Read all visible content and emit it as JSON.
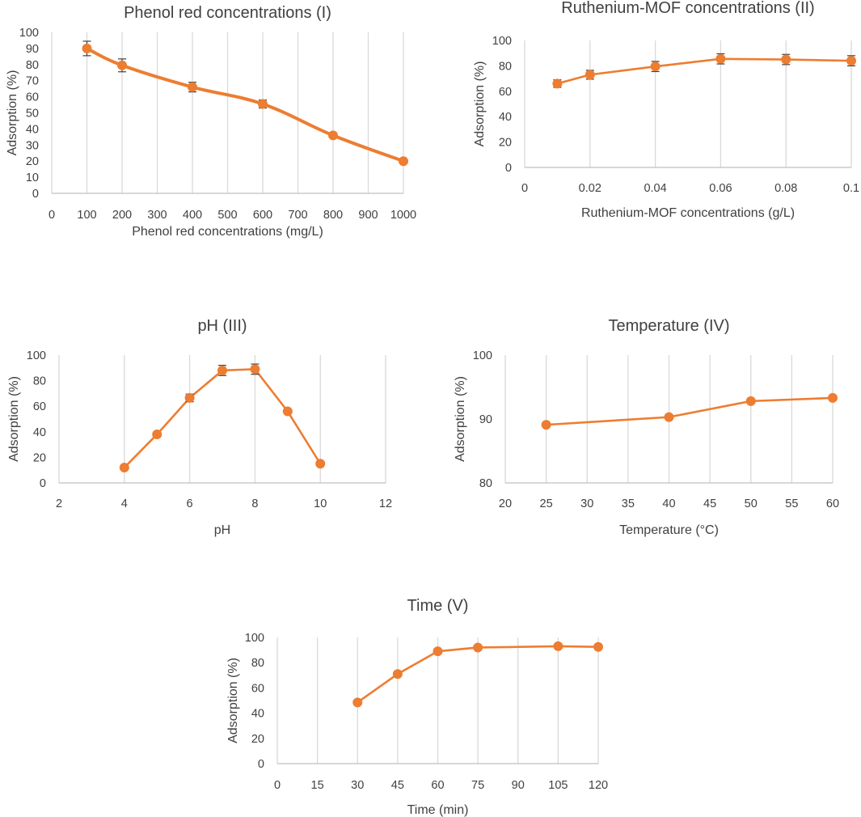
{
  "colors": {
    "series": "#ED7D31",
    "text": "#404040",
    "grid": "#D9D9D9",
    "axis": "#BFBFBF",
    "errorbar": "#404040"
  },
  "chart_data": [
    {
      "type": "line",
      "title": "Phenol red concentrations (I)",
      "xlabel": "Phenol red concentrations (mg/L)",
      "ylabel": "Adsorption (%)",
      "x_mode": "category",
      "categories": [
        "0",
        "100",
        "200",
        "300",
        "400",
        "500",
        "600",
        "700",
        "800",
        "900",
        "1000"
      ],
      "ylim": [
        0,
        100
      ],
      "yticks": [
        0,
        10,
        20,
        30,
        40,
        50,
        60,
        70,
        80,
        90,
        100
      ],
      "grid": "vertical",
      "smooth": true,
      "series": [
        {
          "name": "Adsorption",
          "x": [
            "100",
            "200",
            "400",
            "600",
            "800",
            "1000"
          ],
          "values": [
            90,
            79.5,
            66,
            55.5,
            36,
            20
          ],
          "errors": [
            4.5,
            4,
            3,
            2.5,
            0,
            0
          ]
        }
      ]
    },
    {
      "type": "line",
      "title": "Ruthenium-MOF concentrations (II)",
      "xlabel": "Ruthenium-MOF concentrations (g/L)",
      "ylabel": "Adsorption (%)",
      "x_mode": "numeric",
      "xlim": [
        0,
        0.1
      ],
      "xticks": [
        0,
        0.02,
        0.04,
        0.06,
        0.08,
        0.1
      ],
      "xtick_labels": [
        "0",
        "0.02",
        "0.04",
        "0.06",
        "0.08",
        "0.1"
      ],
      "ylim": [
        0,
        100
      ],
      "yticks": [
        0,
        20,
        40,
        60,
        80,
        100
      ],
      "grid": "vertical",
      "smooth": false,
      "series": [
        {
          "name": "Adsorption",
          "x": [
            0.01,
            0.02,
            0.04,
            0.06,
            0.08,
            0.1
          ],
          "values": [
            66,
            73,
            79.5,
            85.5,
            85,
            84
          ],
          "errors": [
            3,
            3.5,
            4,
            4,
            4,
            4
          ]
        }
      ]
    },
    {
      "type": "line",
      "title": "pH (III)",
      "xlabel": "pH",
      "ylabel": "Adsorption (%)",
      "x_mode": "numeric",
      "xlim": [
        2,
        12
      ],
      "xticks": [
        2,
        4,
        6,
        8,
        10,
        12
      ],
      "xtick_labels": [
        "2",
        "4",
        "6",
        "8",
        "10",
        "12"
      ],
      "ylim": [
        0,
        100
      ],
      "yticks": [
        0,
        20,
        40,
        60,
        80,
        100
      ],
      "grid": "vertical",
      "smooth": false,
      "series": [
        {
          "name": "Adsorption",
          "x": [
            4,
            5,
            6,
            7,
            8,
            9,
            10
          ],
          "values": [
            12,
            38,
            66.5,
            88,
            89,
            56,
            15
          ],
          "errors": [
            0,
            0,
            3,
            4,
            4,
            0,
            0
          ]
        }
      ]
    },
    {
      "type": "line",
      "title": "Temperature (IV)",
      "xlabel": "Temperature (°C)",
      "ylabel": "Adsorption (%)",
      "x_mode": "numeric",
      "xlim": [
        20,
        60
      ],
      "xticks": [
        20,
        25,
        30,
        35,
        40,
        45,
        50,
        55,
        60
      ],
      "xtick_labels": [
        "20",
        "25",
        "30",
        "35",
        "40",
        "45",
        "50",
        "55",
        "60"
      ],
      "ylim": [
        80,
        100
      ],
      "yticks": [
        80,
        90,
        100
      ],
      "grid": "vertical",
      "smooth": false,
      "series": [
        {
          "name": "Adsorption",
          "x": [
            25,
            40,
            50,
            60
          ],
          "values": [
            89.1,
            90.3,
            92.8,
            93.3
          ],
          "errors": [
            0,
            0,
            0,
            0
          ]
        }
      ]
    },
    {
      "type": "line",
      "title": "Time (V)",
      "xlabel": "Time (min)",
      "ylabel": "Adsorption (%)",
      "x_mode": "category",
      "categories": [
        "0",
        "15",
        "30",
        "45",
        "60",
        "75",
        "90",
        "105",
        "120"
      ],
      "ylim": [
        0,
        100
      ],
      "yticks": [
        0,
        20,
        40,
        60,
        80,
        100
      ],
      "grid": "vertical",
      "smooth": false,
      "series": [
        {
          "name": "Adsorption",
          "x": [
            "30",
            "45",
            "60",
            "75",
            "105",
            "120"
          ],
          "values": [
            48.5,
            71,
            89,
            92,
            93,
            92.5
          ],
          "errors": [
            0,
            0,
            0,
            0,
            0,
            0
          ]
        }
      ]
    }
  ]
}
